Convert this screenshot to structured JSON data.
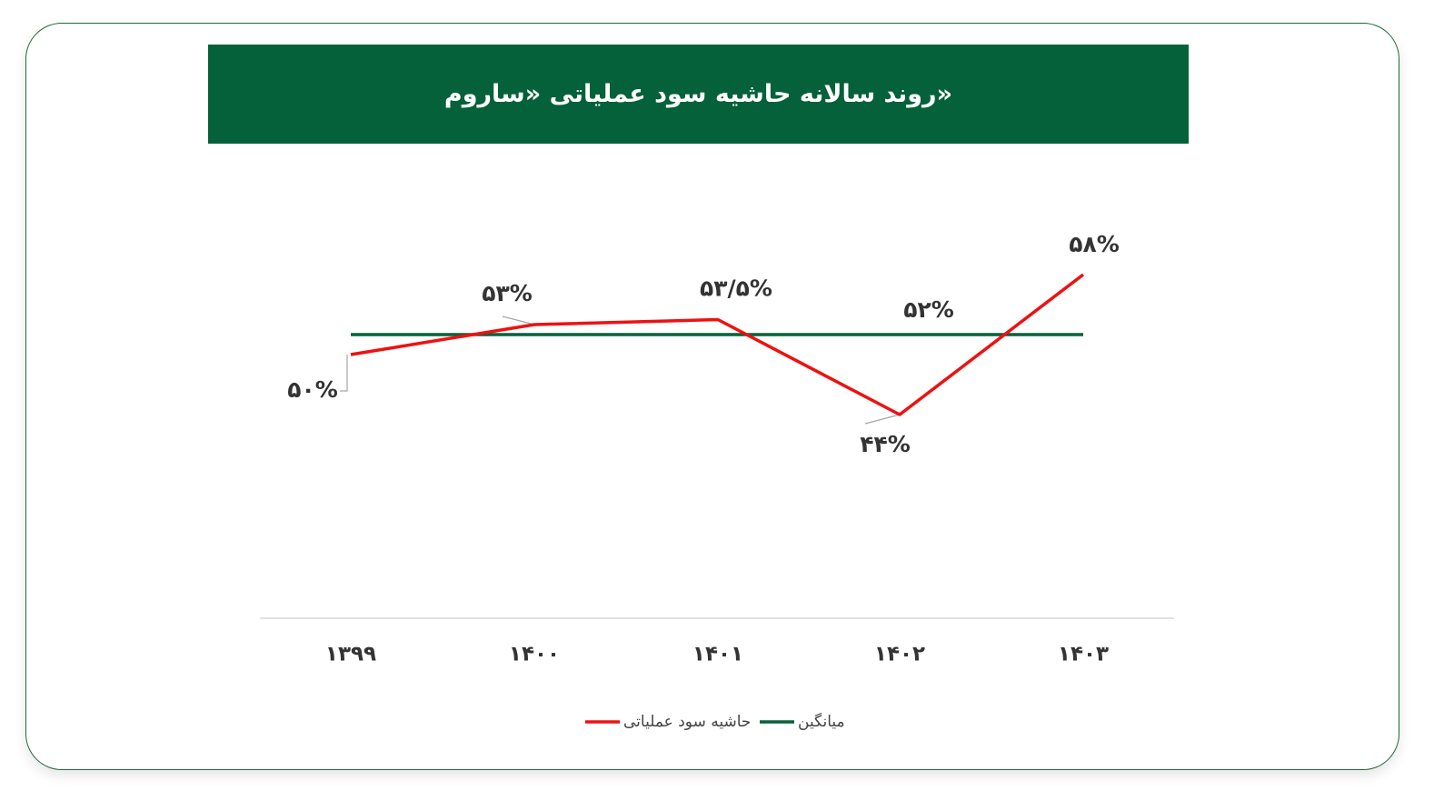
{
  "chart_data": {
    "type": "line",
    "title": "روند سالانه حاشیه سود عملیاتی «ساروم»",
    "categories": [
      "۱۳۹۹",
      "۱۴۰۰",
      "۱۴۰۱",
      "۱۴۰۲",
      "۱۴۰۳"
    ],
    "series": [
      {
        "name": "حاشیه سود عملیاتی",
        "color": "#ee1111",
        "values": [
          50,
          53,
          53.5,
          44,
          58
        ],
        "labels": [
          "۵۰%",
          "۵۳%",
          "۵۳/۵%",
          "۴۴%",
          "۵۸%"
        ]
      },
      {
        "name": "میانگین",
        "color": "#05613a",
        "values": [
          52,
          52,
          52,
          52,
          52
        ],
        "labels": [
          "",
          "",
          "",
          "۵۲%",
          ""
        ]
      }
    ],
    "ylim": [
      30,
      70
    ],
    "grid": false,
    "legend_position": "bottom"
  }
}
